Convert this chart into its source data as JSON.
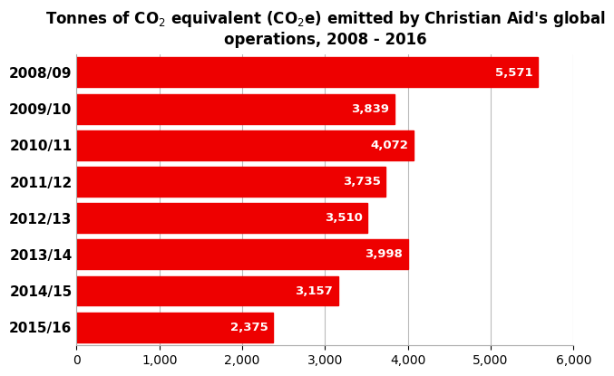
{
  "title": "Tonnes of CO$_2$ equivalent (CO$_2$e) emitted by Christian Aid's global\noperations, 2008 - 2016",
  "categories": [
    "2008/09",
    "2009/10",
    "2010/11",
    "2011/12",
    "2012/13",
    "2013/14",
    "2014/15",
    "2015/16"
  ],
  "values": [
    5571,
    3839,
    4072,
    3735,
    3510,
    3998,
    3157,
    2375
  ],
  "bar_color": "#ee0000",
  "label_color": "#ffffff",
  "xlim": [
    0,
    6000
  ],
  "xticks": [
    0,
    1000,
    2000,
    3000,
    4000,
    5000,
    6000
  ],
  "background_color": "#ffffff",
  "title_fontsize": 12,
  "label_fontsize": 9.5,
  "ytick_fontsize": 11,
  "xtick_fontsize": 10,
  "bar_height": 0.82
}
